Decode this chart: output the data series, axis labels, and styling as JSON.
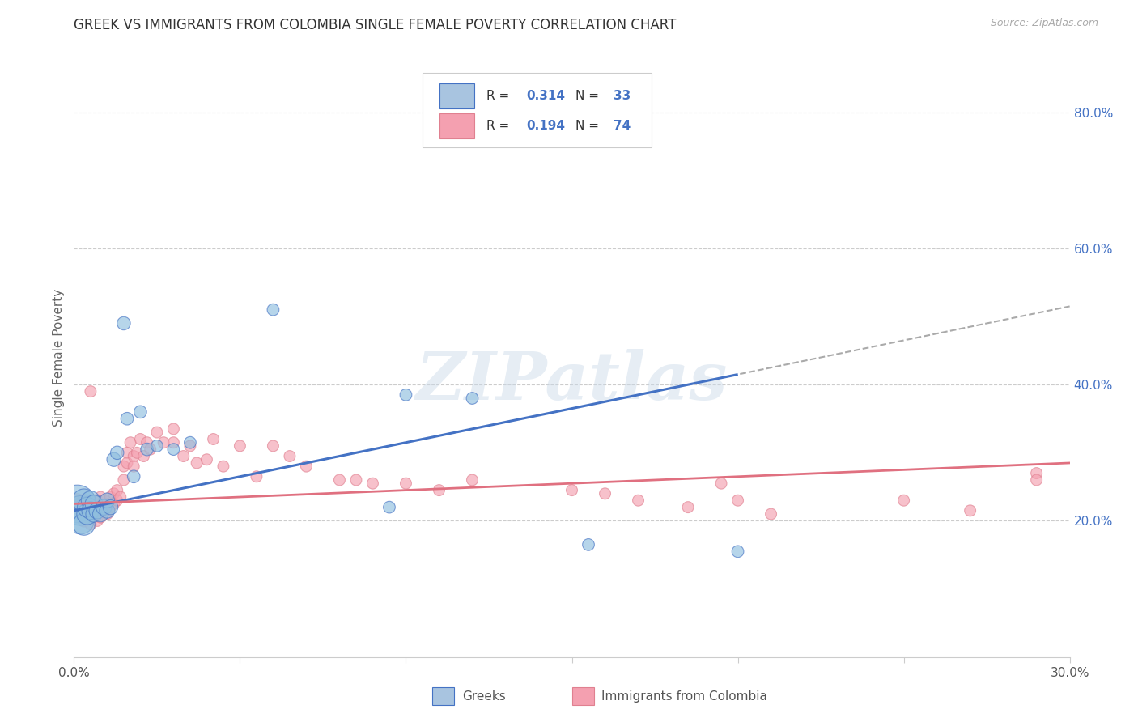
{
  "title": "GREEK VS IMMIGRANTS FROM COLOMBIA SINGLE FEMALE POVERTY CORRELATION CHART",
  "source": "Source: ZipAtlas.com",
  "ylabel": "Single Female Poverty",
  "xlim": [
    0.0,
    0.3
  ],
  "ylim": [
    0.0,
    0.88
  ],
  "x_ticks": [
    0.0,
    0.05,
    0.1,
    0.15,
    0.2,
    0.25,
    0.3
  ],
  "x_tick_labels": [
    "0.0%",
    "",
    "",
    "",
    "",
    "",
    "30.0%"
  ],
  "y_ticks_right": [
    0.2,
    0.4,
    0.6,
    0.8
  ],
  "y_tick_labels_right": [
    "20.0%",
    "40.0%",
    "60.0%",
    "80.0%"
  ],
  "legend_color1": "#a8c4e0",
  "legend_color2": "#f4a0b0",
  "series1_color": "#90bfdf",
  "series2_color": "#f4a0b0",
  "line1_color": "#4472c4",
  "line2_color": "#e07080",
  "watermark": "ZIPatlas",
  "background_color": "#ffffff",
  "right_axis_color": "#4472c4",
  "greeks_x": [
    0.001,
    0.002,
    0.002,
    0.003,
    0.003,
    0.004,
    0.004,
    0.005,
    0.005,
    0.006,
    0.006,
    0.007,
    0.008,
    0.009,
    0.01,
    0.01,
    0.011,
    0.012,
    0.013,
    0.015,
    0.016,
    0.018,
    0.02,
    0.022,
    0.025,
    0.03,
    0.035,
    0.06,
    0.095,
    0.1,
    0.12,
    0.155,
    0.2
  ],
  "greeks_y": [
    0.225,
    0.215,
    0.2,
    0.23,
    0.195,
    0.21,
    0.22,
    0.23,
    0.215,
    0.225,
    0.21,
    0.215,
    0.21,
    0.22,
    0.215,
    0.23,
    0.22,
    0.29,
    0.3,
    0.49,
    0.35,
    0.265,
    0.36,
    0.305,
    0.31,
    0.305,
    0.315,
    0.51,
    0.22,
    0.385,
    0.38,
    0.165,
    0.155
  ],
  "greeks_size": [
    160,
    100,
    80,
    60,
    55,
    50,
    45,
    40,
    35,
    35,
    30,
    30,
    28,
    28,
    26,
    25,
    25,
    22,
    20,
    20,
    18,
    18,
    18,
    18,
    16,
    16,
    16,
    16,
    16,
    16,
    16,
    16,
    16
  ],
  "colombia_x": [
    0.001,
    0.002,
    0.002,
    0.003,
    0.003,
    0.004,
    0.004,
    0.005,
    0.005,
    0.005,
    0.006,
    0.006,
    0.007,
    0.007,
    0.007,
    0.008,
    0.008,
    0.008,
    0.009,
    0.009,
    0.01,
    0.01,
    0.011,
    0.011,
    0.012,
    0.012,
    0.013,
    0.013,
    0.014,
    0.015,
    0.015,
    0.016,
    0.016,
    0.017,
    0.018,
    0.018,
    0.019,
    0.02,
    0.021,
    0.022,
    0.023,
    0.025,
    0.027,
    0.03,
    0.03,
    0.033,
    0.035,
    0.037,
    0.04,
    0.042,
    0.045,
    0.05,
    0.055,
    0.06,
    0.065,
    0.07,
    0.08,
    0.085,
    0.09,
    0.1,
    0.11,
    0.12,
    0.15,
    0.16,
    0.17,
    0.185,
    0.195,
    0.2,
    0.21,
    0.25,
    0.27,
    0.29,
    0.29,
    0.005
  ],
  "colombia_y": [
    0.23,
    0.225,
    0.215,
    0.23,
    0.2,
    0.225,
    0.215,
    0.23,
    0.22,
    0.195,
    0.225,
    0.21,
    0.23,
    0.215,
    0.2,
    0.235,
    0.22,
    0.205,
    0.23,
    0.215,
    0.225,
    0.21,
    0.235,
    0.22,
    0.24,
    0.225,
    0.245,
    0.23,
    0.235,
    0.28,
    0.26,
    0.3,
    0.285,
    0.315,
    0.295,
    0.28,
    0.3,
    0.32,
    0.295,
    0.315,
    0.305,
    0.33,
    0.315,
    0.335,
    0.315,
    0.295,
    0.31,
    0.285,
    0.29,
    0.32,
    0.28,
    0.31,
    0.265,
    0.31,
    0.295,
    0.28,
    0.26,
    0.26,
    0.255,
    0.255,
    0.245,
    0.26,
    0.245,
    0.24,
    0.23,
    0.22,
    0.255,
    0.23,
    0.21,
    0.23,
    0.215,
    0.27,
    0.26,
    0.39
  ],
  "colombia_size": [
    30,
    28,
    26,
    25,
    24,
    23,
    22,
    22,
    21,
    20,
    20,
    20,
    20,
    20,
    20,
    20,
    20,
    20,
    20,
    20,
    20,
    20,
    20,
    20,
    20,
    20,
    20,
    20,
    20,
    20,
    20,
    20,
    20,
    20,
    20,
    20,
    20,
    20,
    20,
    20,
    20,
    20,
    20,
    20,
    20,
    20,
    20,
    20,
    20,
    20,
    20,
    20,
    20,
    20,
    20,
    20,
    20,
    20,
    20,
    20,
    20,
    20,
    20,
    20,
    20,
    20,
    20,
    20,
    20,
    20,
    20,
    20,
    20,
    20
  ]
}
